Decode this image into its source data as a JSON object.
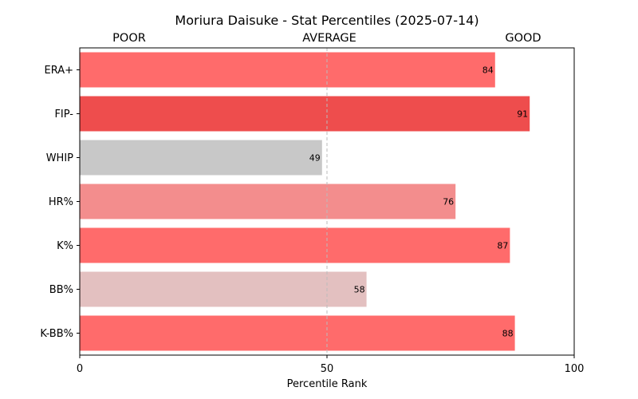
{
  "chart_data": {
    "type": "bar",
    "orientation": "horizontal",
    "title": "Moriura Daisuke - Stat Percentiles (2025-07-14)",
    "band_labels": [
      "POOR",
      "AVERAGE",
      "GOOD"
    ],
    "xlabel": "Percentile Rank",
    "ylabel": "",
    "xlim": [
      0,
      100
    ],
    "xticks": [
      0,
      50,
      100
    ],
    "reference_line": 50,
    "grid": false,
    "categories": [
      "ERA+",
      "FIP-",
      "WHIP",
      "HR%",
      "K%",
      "BB%",
      "K-BB%"
    ],
    "values": [
      84,
      91,
      49,
      76,
      87,
      58,
      88
    ],
    "colors": [
      "#ff6b6b",
      "#ee4d4d",
      "#c8c8c8",
      "#f38d8d",
      "#ff6b6b",
      "#e3c0c0",
      "#ff6b6b"
    ]
  }
}
